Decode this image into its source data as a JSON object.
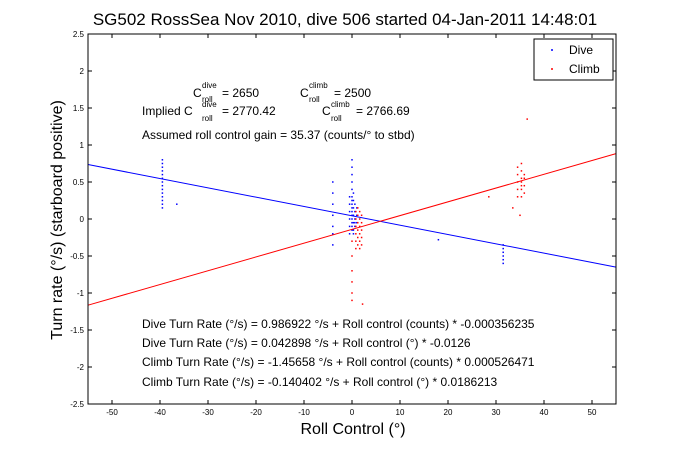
{
  "chart_data": {
    "type": "scatter",
    "title": "SG502 RossSea Nov 2010, dive 506 started 04-Jan-2011 14:48:01",
    "xlabel": "Roll Control (°)",
    "ylabel": "Turn rate (°/s) (starboard positive)",
    "xlim": [
      -55,
      55
    ],
    "ylim": [
      -2.5,
      2.5
    ],
    "xticks": [
      -50,
      -40,
      -30,
      -20,
      -10,
      0,
      10,
      20,
      30,
      40,
      50
    ],
    "yticks": [
      -2.5,
      -2,
      -1.5,
      -1,
      -0.5,
      0,
      0.5,
      1,
      1.5,
      2,
      2.5
    ],
    "grid": false,
    "legend": {
      "position": "top-right",
      "entries": [
        "Dive",
        "Climb"
      ]
    },
    "colors": {
      "dive": "#0000ff",
      "climb": "#ff0000",
      "axes": "#000000"
    },
    "annotations": {
      "c_dive_prefix": "C",
      "c_dive_sup": "dive",
      "c_dive_sub": "roll",
      "c_dive_value": "= 2650",
      "c_climb_prefix": "C",
      "c_climb_sup": "climb",
      "c_climb_sub": "roll",
      "c_climb_value": "= 2500",
      "implied_label": "Implied C",
      "implied_dive_sup": "dive",
      "implied_dive_sub": "roll",
      "implied_dive_value": "= 2770.42",
      "implied_climb_prefix": "C",
      "implied_climb_sup": "climb",
      "implied_climb_sub": "roll",
      "implied_climb_value": "= 2766.69",
      "gain": "Assumed roll control gain = 35.37 (counts/° to stbd)",
      "fit1": "Dive Turn Rate (°/s) = 0.986922 °/s + Roll control (counts) * -0.000356235",
      "fit2": "Dive Turn Rate (°/s) = 0.042898 °/s + Roll control (°) * -0.0126",
      "fit3": "Climb Turn Rate (°/s) = -1.45658 °/s + Roll control (counts) * 0.000526471",
      "fit4": "Climb Turn Rate (°/s) = -0.140402 °/s + Roll control (°) * 0.0186213"
    },
    "series": [
      {
        "name": "Dive",
        "fit": {
          "intercept": 0.042898,
          "slope": -0.0126
        },
        "points": [
          [
            -39.5,
            0.15
          ],
          [
            -39.5,
            0.2
          ],
          [
            -39.5,
            0.25
          ],
          [
            -39.5,
            0.3
          ],
          [
            -39.5,
            0.35
          ],
          [
            -39.5,
            0.4
          ],
          [
            -39.5,
            0.45
          ],
          [
            -39.5,
            0.5
          ],
          [
            -39.5,
            0.55
          ],
          [
            -39.5,
            0.6
          ],
          [
            -39.5,
            0.65
          ],
          [
            -39.5,
            0.7
          ],
          [
            -39.5,
            0.75
          ],
          [
            -39.5,
            0.8
          ],
          [
            -36.5,
            0.2
          ],
          [
            -4,
            0.5
          ],
          [
            -4,
            0.35
          ],
          [
            -4,
            0.2
          ],
          [
            -4,
            0.05
          ],
          [
            -4,
            -0.1
          ],
          [
            -4,
            -0.2
          ],
          [
            -4,
            -0.35
          ],
          [
            -0.5,
            0.3
          ],
          [
            -0.5,
            0.2
          ],
          [
            -0.5,
            0.1
          ],
          [
            -0.5,
            0.0
          ],
          [
            -0.5,
            -0.1
          ],
          [
            -0.5,
            -0.2
          ],
          [
            0,
            0.8
          ],
          [
            0,
            0.7
          ],
          [
            0,
            0.6
          ],
          [
            0,
            0.5
          ],
          [
            0,
            0.4
          ],
          [
            0,
            0.3
          ],
          [
            0,
            0.25
          ],
          [
            0,
            0.2
          ],
          [
            0,
            0.15
          ],
          [
            0,
            0.1
          ],
          [
            0,
            0.05
          ],
          [
            0,
            0.0
          ],
          [
            0,
            -0.05
          ],
          [
            0,
            -0.1
          ],
          [
            0,
            -0.15
          ],
          [
            0.3,
            0.35
          ],
          [
            0.3,
            0.25
          ],
          [
            0.3,
            0.15
          ],
          [
            0.3,
            0.05
          ],
          [
            0.3,
            -0.05
          ],
          [
            0.3,
            -0.15
          ],
          [
            0.3,
            -0.2
          ],
          [
            0.6,
            0.2
          ],
          [
            0.6,
            0.1
          ],
          [
            0.6,
            0.0
          ],
          [
            0.6,
            -0.1
          ],
          [
            0.6,
            -0.05
          ],
          [
            1.0,
            0.15
          ],
          [
            1.0,
            0.05
          ],
          [
            1.0,
            -0.05
          ],
          [
            18,
            -0.28
          ],
          [
            31.5,
            -0.35
          ],
          [
            31.5,
            -0.4
          ],
          [
            31.5,
            -0.45
          ],
          [
            31.5,
            -0.5
          ],
          [
            31.5,
            -0.55
          ],
          [
            31.5,
            -0.6
          ]
        ]
      },
      {
        "name": "Climb",
        "fit": {
          "intercept": -0.140402,
          "slope": 0.0186213
        },
        "points": [
          [
            0,
            -0.3
          ],
          [
            0,
            -0.5
          ],
          [
            0,
            -0.7
          ],
          [
            0,
            -0.85
          ],
          [
            0,
            -1.0
          ],
          [
            0,
            -1.1
          ],
          [
            0.8,
            0.1
          ],
          [
            0.8,
            0.0
          ],
          [
            0.8,
            -0.1
          ],
          [
            0.8,
            -0.2
          ],
          [
            0.8,
            -0.3
          ],
          [
            0.8,
            -0.4
          ],
          [
            1.2,
            0.15
          ],
          [
            1.2,
            0.05
          ],
          [
            1.2,
            -0.05
          ],
          [
            1.2,
            -0.15
          ],
          [
            1.2,
            -0.25
          ],
          [
            1.2,
            -0.35
          ],
          [
            1.6,
            0.1
          ],
          [
            1.6,
            0.0
          ],
          [
            1.6,
            -0.1
          ],
          [
            1.6,
            -0.2
          ],
          [
            1.6,
            -0.3
          ],
          [
            1.6,
            -0.4
          ],
          [
            2.0,
            0.05
          ],
          [
            2.0,
            -0.05
          ],
          [
            2.0,
            -0.15
          ],
          [
            2.0,
            -0.25
          ],
          [
            2.0,
            -0.35
          ],
          [
            2.2,
            -1.15
          ],
          [
            28.5,
            0.3
          ],
          [
            34.5,
            0.3
          ],
          [
            34.5,
            0.4
          ],
          [
            34.5,
            0.5
          ],
          [
            34.5,
            0.6
          ],
          [
            34.5,
            0.7
          ],
          [
            35.3,
            0.3
          ],
          [
            35.3,
            0.4
          ],
          [
            35.3,
            0.45
          ],
          [
            35.3,
            0.5
          ],
          [
            35.3,
            0.55
          ],
          [
            35.3,
            0.65
          ],
          [
            35.3,
            0.75
          ],
          [
            35.9,
            0.35
          ],
          [
            35.9,
            0.45
          ],
          [
            35.9,
            0.55
          ],
          [
            35.9,
            0.6
          ],
          [
            35,
            0.05
          ],
          [
            33.5,
            0.15
          ],
          [
            36.5,
            1.35
          ]
        ]
      }
    ]
  }
}
